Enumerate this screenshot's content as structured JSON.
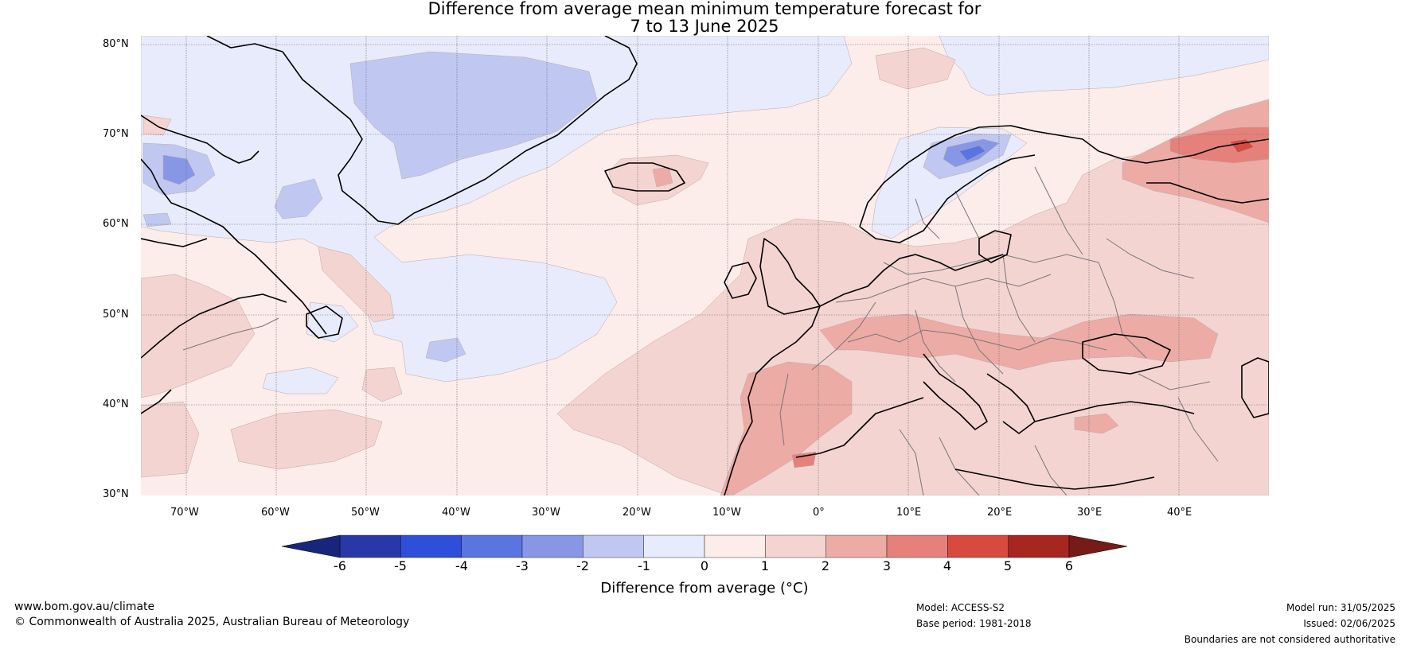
{
  "title": {
    "line1": "Difference from average mean minimum temperature forecast for",
    "line2": "7 to 13 June 2025"
  },
  "map": {
    "lat_labels": [
      "80°N",
      "70°N",
      "60°N",
      "50°N",
      "40°N",
      "30°N"
    ],
    "lon_labels": [
      "70°W",
      "60°W",
      "50°W",
      "40°W",
      "30°W",
      "20°W",
      "10°W",
      "0°",
      "10°E",
      "20°E",
      "30°E",
      "40°E"
    ],
    "extent": {
      "lon": [
        -75,
        50
      ],
      "lat": [
        30,
        81
      ]
    }
  },
  "colorbar": {
    "title": "Difference from average (°C)",
    "ticks": [
      "-6",
      "-5",
      "-4",
      "-3",
      "-2",
      "-1",
      "0",
      "1",
      "2",
      "3",
      "4",
      "5",
      "6"
    ],
    "colors": [
      "#2838a8",
      "#2f4fd8",
      "#5b75e0",
      "#8797e6",
      "#c0c8f2",
      "#e8ebfb",
      "#fcecea",
      "#f4d4d1",
      "#edaba6",
      "#e5817a",
      "#d84a40",
      "#a82620"
    ],
    "under_color": "#17267a",
    "over_color": "#761b17"
  },
  "footer": {
    "url": "www.bom.gov.au/climate",
    "copyright": "© Commonwealth of Australia 2025, Australian Bureau of Meteorology",
    "model": "Model: ACCESS-S2",
    "base_period": "Base period: 1981-2018",
    "model_run": "Model run: 31/05/2025",
    "issued": "Issued: 02/06/2025",
    "disclaimer": "Boundaries are not considered authoritative"
  }
}
